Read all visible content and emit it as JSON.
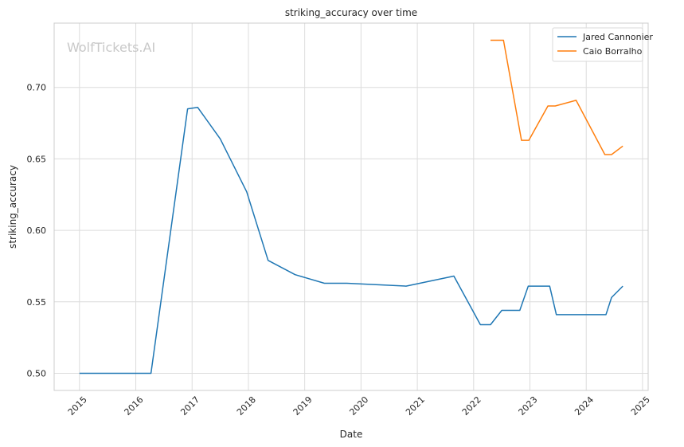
{
  "chart_data": {
    "type": "line",
    "title": "striking_accuracy over time",
    "xlabel": "Date",
    "ylabel": "striking_accuracy",
    "watermark": "WolfTickets.AI",
    "xlim": [
      2014.55,
      2025.1
    ],
    "ylim": [
      0.488,
      0.745
    ],
    "x_ticks": [
      2015,
      2016,
      2017,
      2018,
      2019,
      2020,
      2021,
      2022,
      2023,
      2024,
      2025
    ],
    "x_tick_labels": [
      "2015",
      "2016",
      "2017",
      "2018",
      "2019",
      "2020",
      "2021",
      "2022",
      "2023",
      "2024",
      "2025"
    ],
    "y_ticks": [
      0.5,
      0.55,
      0.6,
      0.65,
      0.7
    ],
    "y_tick_labels": [
      "0.50",
      "0.55",
      "0.60",
      "0.65",
      "0.70"
    ],
    "grid": true,
    "legend_position": "top-right",
    "series": [
      {
        "name": "Jared Cannonier",
        "color": "#1f77b4",
        "points": [
          [
            2015.0,
            0.5
          ],
          [
            2016.27,
            0.5
          ],
          [
            2016.92,
            0.685
          ],
          [
            2017.1,
            0.686
          ],
          [
            2017.5,
            0.664
          ],
          [
            2017.97,
            0.627
          ],
          [
            2018.35,
            0.579
          ],
          [
            2018.83,
            0.569
          ],
          [
            2019.35,
            0.563
          ],
          [
            2019.75,
            0.563
          ],
          [
            2020.8,
            0.561
          ],
          [
            2021.65,
            0.568
          ],
          [
            2022.12,
            0.534
          ],
          [
            2022.3,
            0.534
          ],
          [
            2022.5,
            0.544
          ],
          [
            2022.82,
            0.544
          ],
          [
            2022.97,
            0.561
          ],
          [
            2023.35,
            0.561
          ],
          [
            2023.47,
            0.541
          ],
          [
            2024.35,
            0.541
          ],
          [
            2024.45,
            0.553
          ],
          [
            2024.65,
            0.561
          ]
        ]
      },
      {
        "name": "Caio Borralho",
        "color": "#ff7f0e",
        "points": [
          [
            2022.3,
            0.733
          ],
          [
            2022.53,
            0.733
          ],
          [
            2022.85,
            0.663
          ],
          [
            2022.98,
            0.663
          ],
          [
            2023.32,
            0.687
          ],
          [
            2023.45,
            0.687
          ],
          [
            2023.82,
            0.691
          ],
          [
            2024.33,
            0.653
          ],
          [
            2024.45,
            0.653
          ],
          [
            2024.65,
            0.659
          ]
        ]
      }
    ]
  }
}
